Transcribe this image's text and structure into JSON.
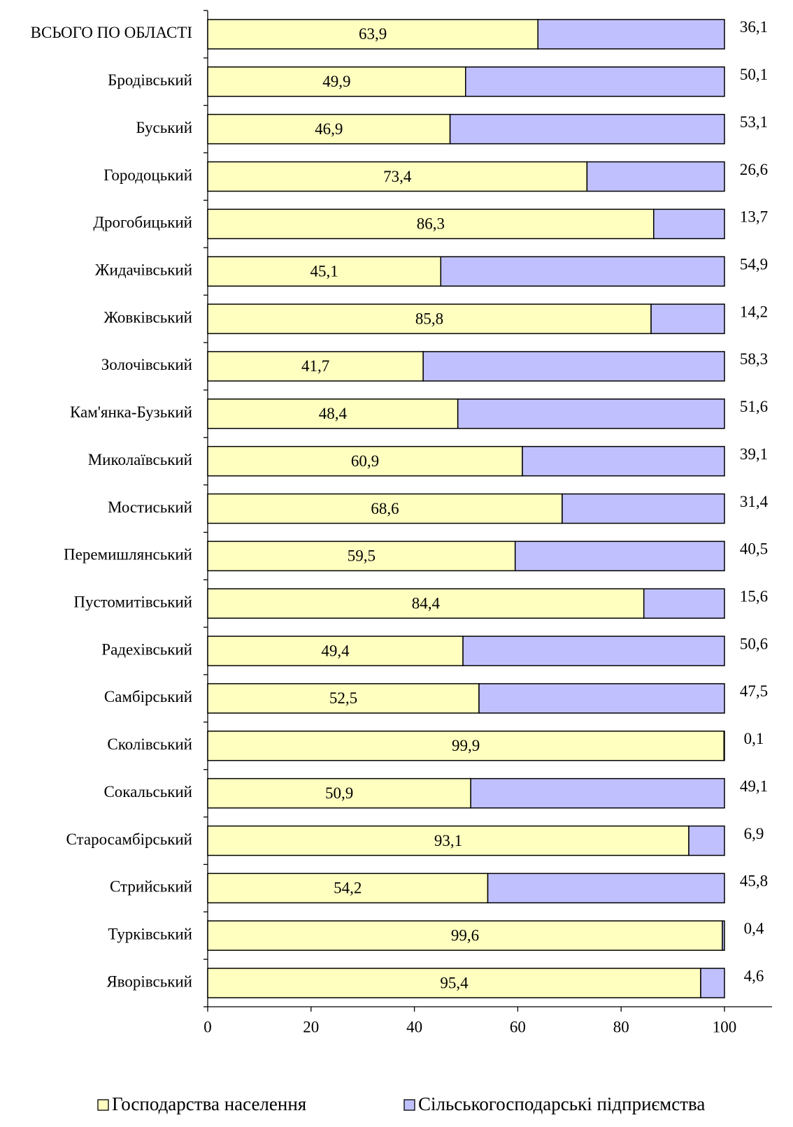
{
  "chart_data": {
    "type": "stacked_barh",
    "categories": [
      "ВСЬОГО ПО ОБЛАСТІ",
      "Бродівський",
      "Буський",
      "Городоцький",
      "Дрогобицький",
      "Жидачівський",
      "Жовківський",
      "Золочівський",
      "Кам'янка-Бузький",
      "Миколаївський",
      "Мостиський",
      "Перемишлянський",
      "Пустомитівський",
      "Радехівський",
      "Самбірський",
      "Сколівський",
      "Сокальський",
      "Старосамбірський",
      "Стрийський",
      "Турківський",
      "Яворівський"
    ],
    "series": [
      {
        "name": "Господарства населення",
        "color": "#ffffc0",
        "values": [
          63.9,
          49.9,
          46.9,
          73.4,
          86.3,
          45.1,
          85.8,
          41.7,
          48.4,
          60.9,
          68.6,
          59.5,
          84.4,
          49.4,
          52.5,
          99.9,
          50.9,
          93.1,
          54.2,
          99.6,
          95.4
        ],
        "value_labels": [
          "63,9",
          "49,9",
          "46,9",
          "73,4",
          "86,3",
          "45,1",
          "85,8",
          "41,7",
          "48,4",
          "60,9",
          "68,6",
          "59,5",
          "84,4",
          "49,4",
          "52,5",
          "99,9",
          "50,9",
          "93,1",
          "54,2",
          "99,6",
          "95,4"
        ]
      },
      {
        "name": "Сільськогосподарські підприємства",
        "color": "#c0c0ff",
        "values": [
          36.1,
          50.1,
          53.1,
          26.6,
          13.7,
          54.9,
          14.2,
          58.3,
          51.6,
          39.1,
          31.4,
          40.5,
          15.6,
          50.6,
          47.5,
          0.1,
          49.1,
          6.9,
          45.8,
          0.4,
          4.6
        ],
        "value_labels": [
          "36,1",
          "50,1",
          "53,1",
          "26,6",
          "13,7",
          "54,9",
          "14,2",
          "58,3",
          "51,6",
          "39,1",
          "31,4",
          "40,5",
          "15,6",
          "50,6",
          "47,5",
          "0,1",
          "49,1",
          "6,9",
          "45,8",
          "0,4",
          "4,6"
        ]
      }
    ],
    "xlim": [
      0,
      100
    ],
    "xticks": [
      0,
      20,
      40,
      60,
      80,
      100
    ],
    "legend": "bottom"
  }
}
